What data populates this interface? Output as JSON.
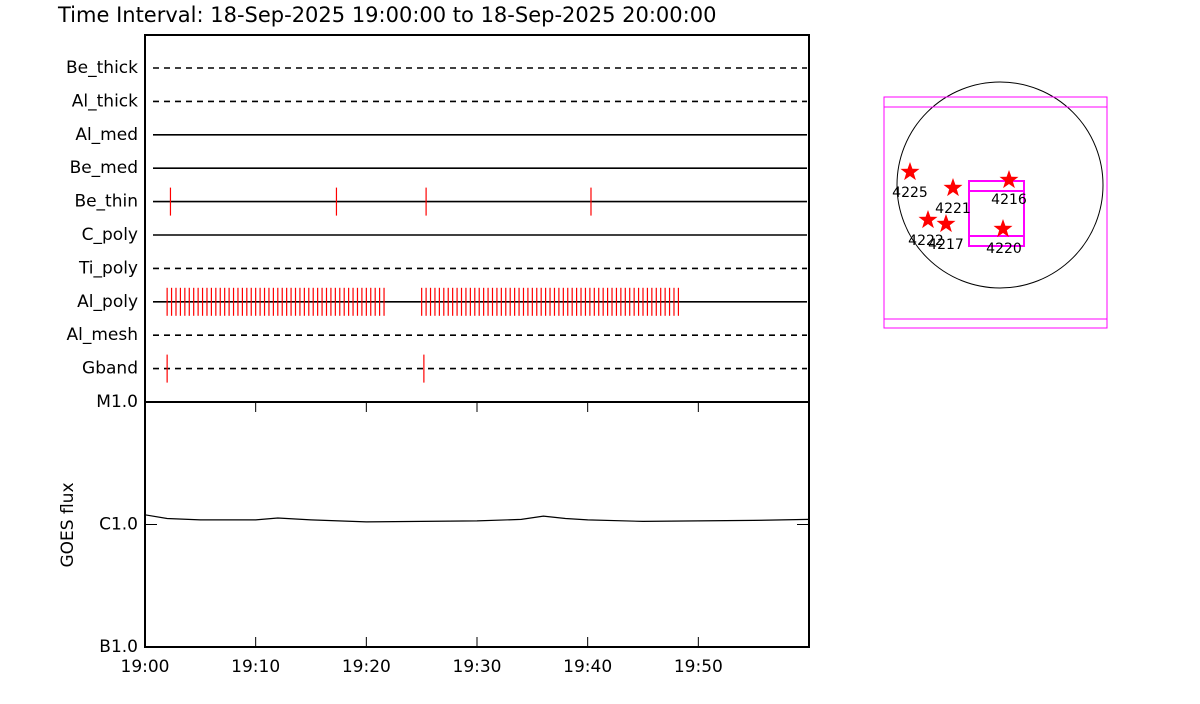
{
  "chart_data": [
    {
      "type": "event",
      "title": "Time Interval: 18-Sep-2025 19:00:00 to 18-Sep-2025 20:00:00",
      "categories": [
        "Be_thick",
        "Al_thick",
        "Al_med",
        "Be_med",
        "Be_thin",
        "C_poly",
        "Ti_poly",
        "Al_poly",
        "Al_mesh",
        "Gband"
      ],
      "line_styles": [
        "dashed",
        "dashed",
        "solid",
        "solid",
        "solid",
        "solid",
        "dashed",
        "solid",
        "dashed",
        "dashed"
      ],
      "events": [
        [],
        [],
        [],
        [],
        [
          2.3,
          17.3,
          25.4,
          40.3
        ],
        [],
        [],
        [
          2.0,
          2.4,
          2.8,
          3.2,
          3.6,
          4.0,
          4.4,
          4.8,
          5.2,
          5.6,
          6.0,
          6.4,
          6.8,
          7.2,
          7.6,
          8.0,
          8.4,
          8.8,
          9.2,
          9.6,
          10.0,
          10.4,
          10.8,
          11.2,
          11.6,
          12.0,
          12.4,
          12.8,
          13.2,
          13.6,
          14.0,
          14.4,
          14.8,
          15.2,
          15.6,
          16.0,
          16.4,
          16.8,
          17.2,
          17.6,
          18.0,
          18.4,
          18.8,
          19.2,
          19.6,
          20.0,
          20.4,
          20.8,
          21.2,
          21.6,
          25.0,
          25.4,
          25.8,
          26.2,
          26.6,
          27.0,
          27.4,
          27.8,
          28.2,
          28.6,
          29.0,
          29.4,
          29.8,
          30.2,
          30.6,
          31.0,
          31.4,
          31.8,
          32.2,
          32.6,
          33.0,
          33.4,
          33.8,
          34.2,
          34.6,
          35.0,
          35.4,
          35.8,
          36.2,
          36.6,
          37.0,
          37.4,
          37.8,
          38.2,
          38.6,
          39.0,
          39.4,
          39.8,
          40.2,
          40.6,
          41.0,
          41.4,
          41.8,
          42.2,
          42.6,
          43.0,
          43.4,
          43.8,
          44.2,
          44.6,
          45.0,
          45.4,
          45.8,
          46.2,
          46.6,
          47.0,
          47.4,
          47.8,
          48.2
        ],
        [],
        [
          2.0,
          25.2
        ]
      ],
      "color": "#ff0000",
      "xlim": [
        0,
        60
      ]
    },
    {
      "type": "line",
      "ylabel": "GOES flux",
      "x": [
        0,
        2,
        5,
        10,
        12,
        15,
        20,
        25,
        30,
        34,
        36,
        38,
        40,
        45,
        50,
        55,
        60
      ],
      "values": [
        1.2e-06,
        1.12e-06,
        1.09e-06,
        1.09e-06,
        1.13e-06,
        1.09e-06,
        1.05e-06,
        1.06e-06,
        1.07e-06,
        1.1e-06,
        1.17e-06,
        1.12e-06,
        1.09e-06,
        1.06e-06,
        1.07e-06,
        1.08e-06,
        1.1e-06
      ],
      "color": "#000000",
      "log": true,
      "xlim": [
        0,
        60
      ],
      "xticks": [
        {
          "value": 0,
          "label": "19:00"
        },
        {
          "value": 10,
          "label": "19:10"
        },
        {
          "value": 20,
          "label": "19:20"
        },
        {
          "value": 30,
          "label": "19:30"
        },
        {
          "value": 40,
          "label": "19:40"
        },
        {
          "value": 50,
          "label": "19:50"
        }
      ],
      "ylim": [
        1e-07,
        1e-05
      ],
      "yticks": [
        {
          "value": 1e-07,
          "label": "B1.0"
        },
        {
          "value": 1e-06,
          "label": "C1.0"
        },
        {
          "value": 1e-05,
          "label": "M1.0"
        }
      ]
    }
  ],
  "map": {
    "regions": [
      "4225",
      "4221",
      "4216",
      "4222",
      "4217",
      "4220"
    ]
  }
}
